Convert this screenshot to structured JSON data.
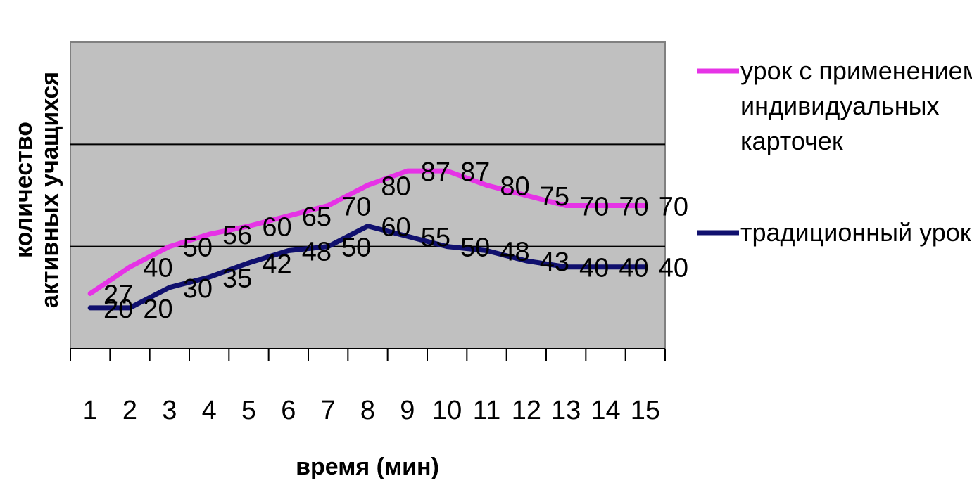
{
  "chart_data": {
    "type": "line",
    "title": "",
    "xlabel": "время (мин)",
    "ylabel_line1": "количество",
    "ylabel_line2": "активных учащихся",
    "x": [
      1,
      2,
      3,
      4,
      5,
      6,
      7,
      8,
      9,
      10,
      11,
      12,
      13,
      14,
      15
    ],
    "ylim": [
      0,
      150
    ],
    "grid": "horizontal",
    "legend_position": "right",
    "plot_background": "#c0c0c0",
    "series": [
      {
        "name": "урок с применением индивидуальных карточек",
        "legend_lines": [
          "урок с применением",
          "индивидуальных",
          "карточек"
        ],
        "color": "#e633e6",
        "values": [
          27,
          40,
          50,
          56,
          60,
          65,
          70,
          80,
          87,
          87,
          80,
          75,
          70,
          70,
          70
        ]
      },
      {
        "name": "традиционный урок",
        "legend_lines": [
          "традиционный урок"
        ],
        "color": "#10106e",
        "values": [
          20,
          20,
          30,
          35,
          42,
          48,
          50,
          60,
          55,
          50,
          48,
          43,
          40,
          40,
          40
        ]
      }
    ]
  }
}
